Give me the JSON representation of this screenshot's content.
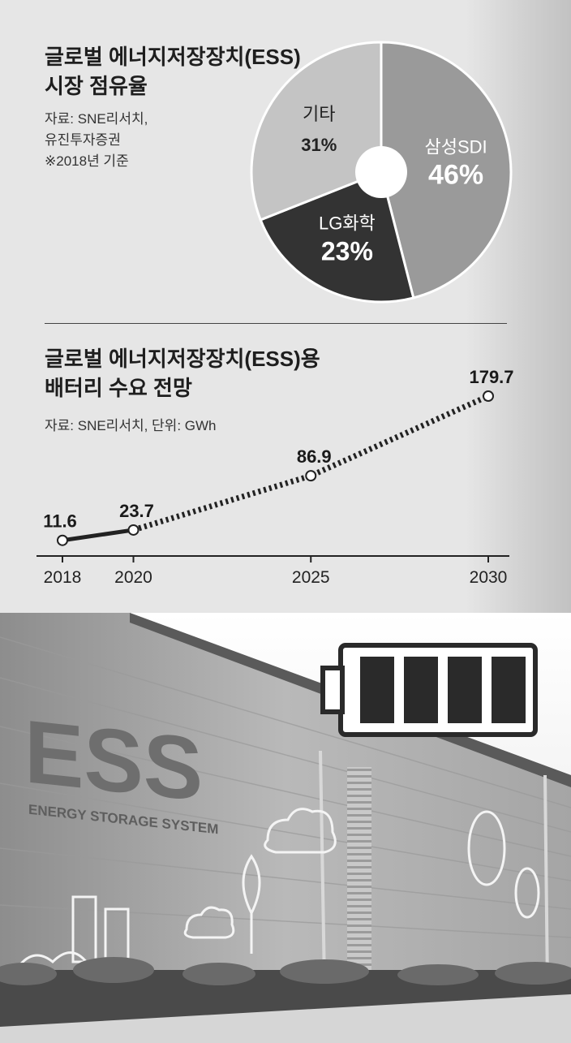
{
  "pie_section": {
    "title_line1": "글로벌 에너지저장장치(ESS)",
    "title_line2": "시장 점유율",
    "source_line1": "자료: SNE리서치,",
    "source_line2": "유진투자증권",
    "source_line3": "※2018년 기준"
  },
  "line_section": {
    "title_line1": "글로벌 에너지저장장치(ESS)용",
    "title_line2": "배터리 수요 전망",
    "source_line1": "자료: SNE리서치, 단위: GWh"
  },
  "photo": {
    "sign_text": "ESS",
    "sign_subtext": "ENERGY STORAGE SYSTEM"
  },
  "chart_data": [
    {
      "type": "pie",
      "title": "글로벌 에너지저장장치(ESS) 시장 점유율",
      "slices": [
        {
          "label": "삼성SDI",
          "value": 46,
          "value_label": "46%",
          "color": "#9a9a9a"
        },
        {
          "label": "LG화학",
          "value": 23,
          "value_label": "23%",
          "color": "#333333"
        },
        {
          "label": "기타",
          "value": 31,
          "value_label": "31%",
          "color": "#c4c4c4"
        }
      ],
      "donut_hole": true
    },
    {
      "type": "line",
      "title": "글로벌 에너지저장장치(ESS)용 배터리 수요 전망",
      "x": [
        2018,
        2020,
        2025,
        2030
      ],
      "x_tick_labels": [
        "2018",
        "2020",
        "2025",
        "2030"
      ],
      "values": [
        11.6,
        23.7,
        86.9,
        179.7
      ],
      "value_labels": [
        "11.6",
        "23.7",
        "86.9",
        "179.7"
      ],
      "actual_until": 2020,
      "forecast_style": "dotted",
      "unit": "GWh",
      "ylim": [
        0,
        179.7
      ]
    }
  ]
}
